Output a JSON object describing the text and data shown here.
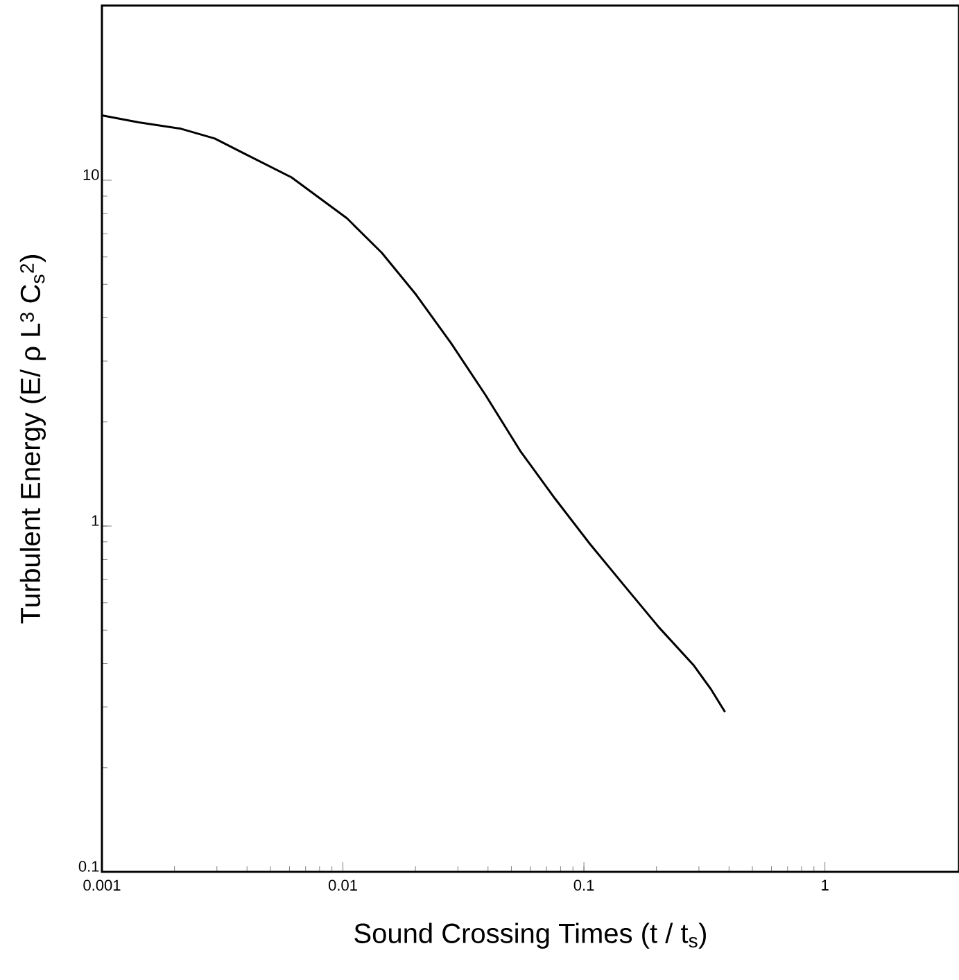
{
  "chart_data": {
    "type": "line",
    "xlabel": "Sound Crossing Times (t / t$_{s}$)",
    "ylabel": "Turbulent Energy (E/ ρ L$^{3}$ C$_{s}$$^{2}$)",
    "log": "xy",
    "marker": "none",
    "line_style": "solid",
    "x": [
      0.001,
      0.00142,
      0.00212,
      0.00294,
      0.00385,
      0.00611,
      0.0104,
      0.0145,
      0.0201,
      0.0281,
      0.0391,
      0.0544,
      0.0759,
      0.106,
      0.147,
      0.205,
      0.286,
      0.337,
      0.385
    ],
    "series": [
      {
        "color": "#000000",
        "values": [
          15.4,
          14.7,
          14.1,
          13.2,
          12.0,
          10.2,
          7.76,
          6.17,
          4.67,
          3.38,
          2.39,
          1.65,
          1.2,
          0.887,
          0.673,
          0.509,
          0.395,
          0.337,
          0.29
        ]
      }
    ],
    "xlim": [
      0.001,
      3.6
    ],
    "ylim": [
      0.1,
      32
    ],
    "xticks": [
      0.001,
      0.01,
      0.1,
      1
    ],
    "yticks": [
      0.1,
      1,
      10
    ]
  }
}
